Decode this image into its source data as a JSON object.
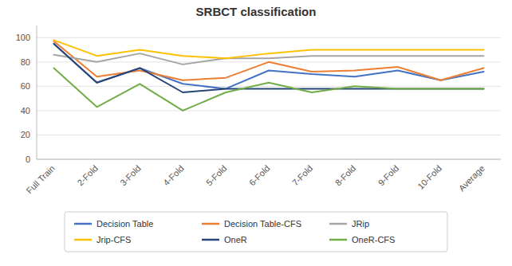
{
  "chart_data": {
    "type": "line",
    "title": "SRBCT classification",
    "categories": [
      "Full Train",
      "2-Fold",
      "3-Fold",
      "4-Fold",
      "5-Fold",
      "6-Fold",
      "7-Fold",
      "8-Fold",
      "9-Fold",
      "10-Fold",
      "Average"
    ],
    "series": [
      {
        "name": "Decision Table",
        "color": "#4472C4",
        "values": [
          95,
          63,
          75,
          62,
          58,
          73,
          70,
          68,
          73,
          65,
          72
        ]
      },
      {
        "name": "Decision Table-CFS",
        "color": "#ED7D31",
        "values": [
          97,
          68,
          73,
          65,
          67,
          80,
          72,
          73,
          76,
          65,
          75
        ]
      },
      {
        "name": "JRip",
        "color": "#A5A5A5",
        "values": [
          86,
          80,
          87,
          78,
          83,
          83,
          85,
          85,
          85,
          85,
          85
        ]
      },
      {
        "name": "Jrip-CFS",
        "color": "#FFC000",
        "values": [
          98,
          85,
          90,
          85,
          83,
          87,
          90,
          90,
          90,
          90,
          90
        ]
      },
      {
        "name": "OneR",
        "color": "#264478",
        "values": [
          95,
          63,
          75,
          55,
          58,
          58,
          58,
          58,
          58,
          58,
          58
        ]
      },
      {
        "name": "OneR-CFS",
        "color": "#70AD47",
        "values": [
          75,
          43,
          62,
          40,
          55,
          63,
          55,
          60,
          58,
          58,
          58
        ]
      }
    ],
    "ylim": [
      0,
      110
    ],
    "yticks": [
      0,
      20,
      40,
      60,
      80,
      100
    ],
    "grid": true,
    "legend": "bottom"
  }
}
